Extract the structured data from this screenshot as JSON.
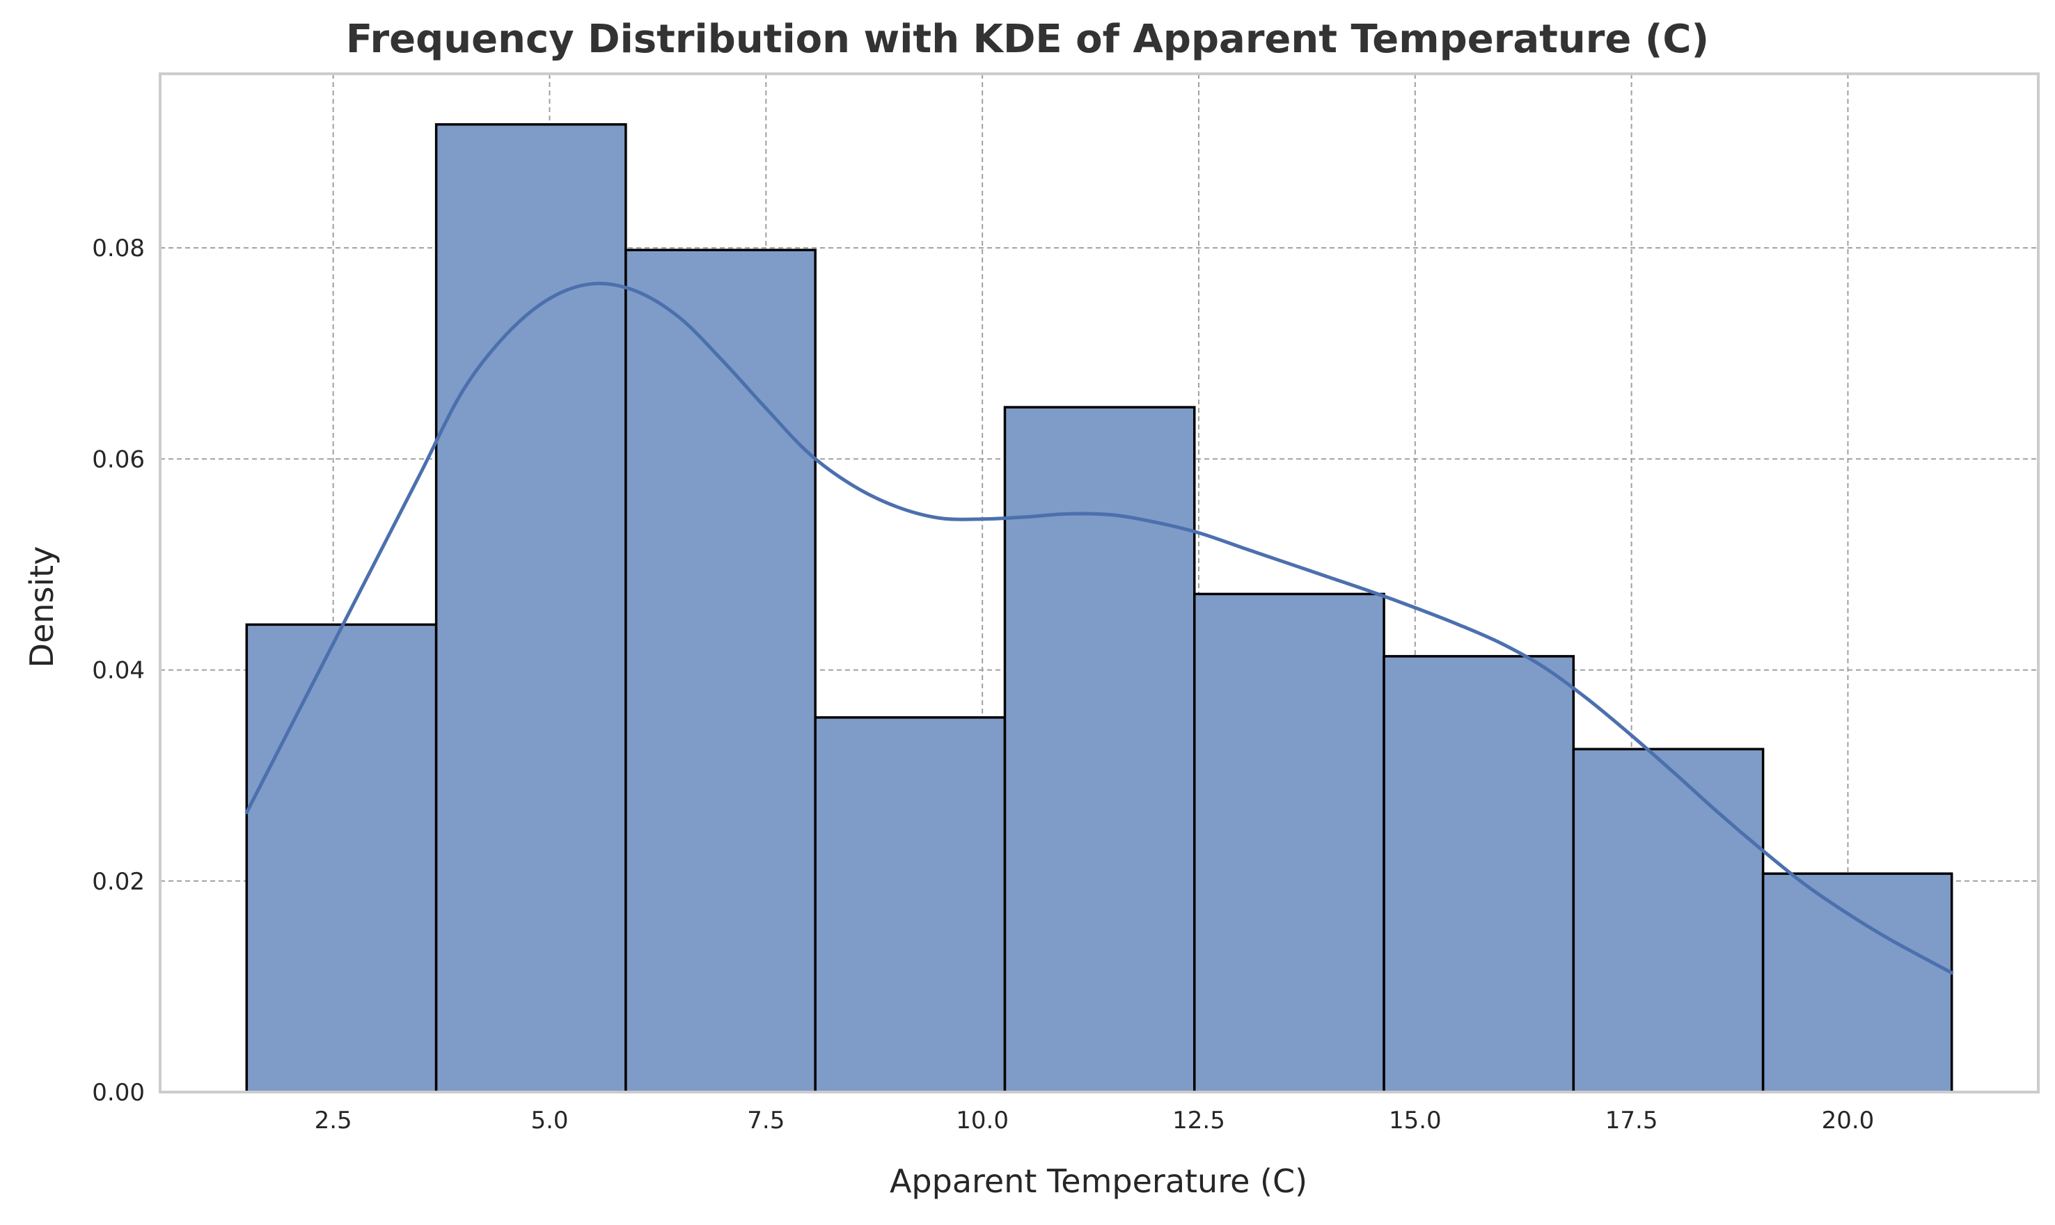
{
  "chart_data": {
    "type": "bar",
    "title": "Frequency Distribution with KDE of Apparent Temperature (C)",
    "xlabel": "Apparent Temperature (C)",
    "ylabel": "Density",
    "xlim": [
      0.5,
      22.2
    ],
    "ylim": [
      0,
      0.0965
    ],
    "xticks": [
      {
        "value": 2.5,
        "label": "2.5"
      },
      {
        "value": 5.0,
        "label": "5.0"
      },
      {
        "value": 7.5,
        "label": "7.5"
      },
      {
        "value": 10.0,
        "label": "10.0"
      },
      {
        "value": 12.5,
        "label": "12.5"
      },
      {
        "value": 15.0,
        "label": "15.0"
      },
      {
        "value": 17.5,
        "label": "17.5"
      },
      {
        "value": 20.0,
        "label": "20.0"
      }
    ],
    "yticks": [
      {
        "value": 0.0,
        "label": "0.00"
      },
      {
        "value": 0.02,
        "label": "0.02"
      },
      {
        "value": 0.04,
        "label": "0.04"
      },
      {
        "value": 0.06,
        "label": "0.06"
      },
      {
        "value": 0.08,
        "label": "0.08"
      }
    ],
    "grid": true,
    "bins": [
      {
        "x0": 1.5,
        "x1": 3.69,
        "density": 0.0443
      },
      {
        "x0": 3.69,
        "x1": 5.88,
        "density": 0.0917
      },
      {
        "x0": 5.88,
        "x1": 8.07,
        "density": 0.0798
      },
      {
        "x0": 8.07,
        "x1": 10.26,
        "density": 0.0355
      },
      {
        "x0": 10.26,
        "x1": 12.45,
        "density": 0.0649
      },
      {
        "x0": 12.45,
        "x1": 14.64,
        "density": 0.0472
      },
      {
        "x0": 14.64,
        "x1": 16.83,
        "density": 0.0413
      },
      {
        "x0": 16.83,
        "x1": 19.02,
        "density": 0.0325
      },
      {
        "x0": 19.02,
        "x1": 21.2,
        "density": 0.0207
      }
    ],
    "kde": {
      "x": [
        1.5,
        2.0,
        2.5,
        3.0,
        3.5,
        4.0,
        4.5,
        5.0,
        5.5,
        6.0,
        6.5,
        7.0,
        7.5,
        8.0,
        8.5,
        9.0,
        9.5,
        10.0,
        10.5,
        11.0,
        11.5,
        12.0,
        12.5,
        13.0,
        13.5,
        14.0,
        14.5,
        15.0,
        15.5,
        16.0,
        16.5,
        17.0,
        17.5,
        18.0,
        18.5,
        19.0,
        19.5,
        20.0,
        20.5,
        21.2
      ],
      "y": [
        0.0265,
        0.0345,
        0.0425,
        0.0505,
        0.0585,
        0.0665,
        0.0718,
        0.0752,
        0.0766,
        0.0759,
        0.0734,
        0.0693,
        0.0648,
        0.0605,
        0.0575,
        0.0555,
        0.0544,
        0.0543,
        0.0545,
        0.0548,
        0.0547,
        0.054,
        0.053,
        0.0516,
        0.0502,
        0.0488,
        0.0474,
        0.0459,
        0.0443,
        0.0425,
        0.0402,
        0.0372,
        0.0338,
        0.0302,
        0.0265,
        0.023,
        0.0197,
        0.0169,
        0.0144,
        0.0113
      ]
    },
    "colors": {
      "bar_fill": "#7f9bc7",
      "bar_edge": "#000000",
      "kde_line": "#4c70ae",
      "grid": "#a0a0a0",
      "frame": "#cccccc"
    }
  }
}
